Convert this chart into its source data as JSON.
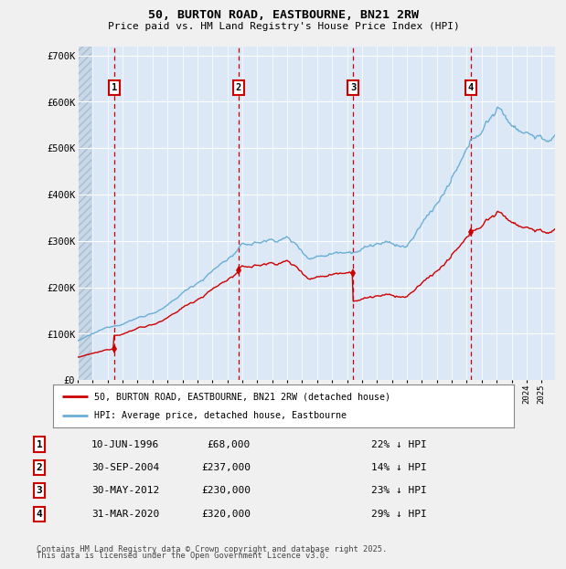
{
  "title_line1": "50, BURTON ROAD, EASTBOURNE, BN21 2RW",
  "title_line2": "Price paid vs. HM Land Registry's House Price Index (HPI)",
  "background_color": "#e8f0f8",
  "plot_bg_color": "#dce8f5",
  "legend_entry1": "50, BURTON ROAD, EASTBOURNE, BN21 2RW (detached house)",
  "legend_entry2": "HPI: Average price, detached house, Eastbourne",
  "sale_dates_decimal": [
    1996.44,
    2004.75,
    2012.42,
    2020.25
  ],
  "sale_prices": [
    68000,
    237000,
    230000,
    320000
  ],
  "sale_labels": [
    "1",
    "2",
    "3",
    "4"
  ],
  "table_rows": [
    [
      "1",
      "10-JUN-1996",
      "£68,000",
      "22% ↓ HPI"
    ],
    [
      "2",
      "30-SEP-2004",
      "£237,000",
      "14% ↓ HPI"
    ],
    [
      "3",
      "30-MAY-2012",
      "£230,000",
      "23% ↓ HPI"
    ],
    [
      "4",
      "31-MAR-2020",
      "£320,000",
      "29% ↓ HPI"
    ]
  ],
  "footer_line1": "Contains HM Land Registry data © Crown copyright and database right 2025.",
  "footer_line2": "This data is licensed under the Open Government Licence v3.0.",
  "ylim": [
    0,
    720000
  ],
  "yticks": [
    0,
    100000,
    200000,
    300000,
    400000,
    500000,
    600000,
    700000
  ],
  "ytick_labels": [
    "£0",
    "£100K",
    "£200K",
    "£300K",
    "£400K",
    "£500K",
    "£600K",
    "£700K"
  ],
  "hpi_line_color": "#6baed6",
  "sale_line_color": "#cc0000",
  "vline_color": "#cc0000",
  "box_color": "#cc0000",
  "grid_color": "#ffffff",
  "xmin": 1994.0,
  "xmax": 2025.9
}
